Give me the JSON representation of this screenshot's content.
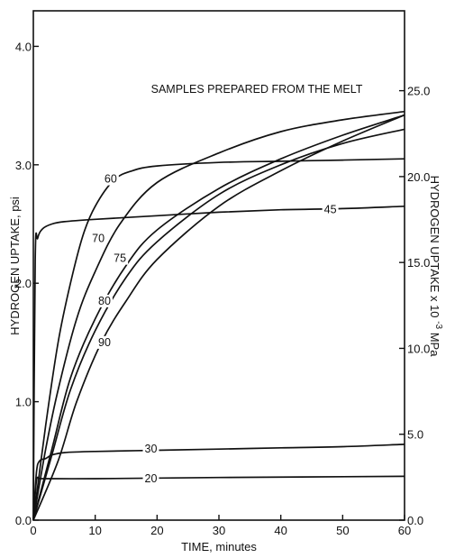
{
  "chart_data": {
    "type": "line",
    "title": "",
    "annotation": "SAMPLES PREPARED FROM THE MELT",
    "xlabel": "TIME, minutes",
    "ylabel": "HYDROGEN UPTAKE, psi",
    "ylabel_right": "HYDROGEN UPTAKE x 10",
    "ylabel_right_exponent": "-3",
    "ylabel_right_unit": "MPa",
    "xlim": [
      0,
      60
    ],
    "ylim": [
      0,
      4.3
    ],
    "ylim_right": [
      0,
      29.65
    ],
    "x_ticks": [
      "0",
      "10",
      "20",
      "30",
      "40",
      "50",
      "60"
    ],
    "y_ticks": [
      "0.0",
      "1.0",
      "2.0",
      "3.0",
      "4.0"
    ],
    "y_ticks_right": [
      "0.0",
      "5.0",
      "10.0",
      "15.0",
      "20.0",
      "25.0"
    ],
    "series": [
      {
        "name": "20",
        "label_at": [
          19,
          0.35
        ],
        "points": [
          [
            0,
            0.0
          ],
          [
            0.5,
            0.33
          ],
          [
            1,
            0.35
          ],
          [
            2,
            0.35
          ],
          [
            10,
            0.35
          ],
          [
            30,
            0.36
          ],
          [
            60,
            0.37
          ]
        ]
      },
      {
        "name": "30",
        "label_at": [
          19,
          0.6
        ],
        "points": [
          [
            0,
            0.0
          ],
          [
            0.5,
            0.4
          ],
          [
            1,
            0.5
          ],
          [
            2,
            0.52
          ],
          [
            3,
            0.55
          ],
          [
            5,
            0.57
          ],
          [
            10,
            0.58
          ],
          [
            20,
            0.59
          ],
          [
            30,
            0.6
          ],
          [
            40,
            0.61
          ],
          [
            50,
            0.62
          ],
          [
            60,
            0.64
          ]
        ]
      },
      {
        "name": "45",
        "label_at": [
          48,
          2.62
        ],
        "points": [
          [
            0,
            0.0
          ],
          [
            0.3,
            2.2
          ],
          [
            0.7,
            2.38
          ],
          [
            1.5,
            2.46
          ],
          [
            3,
            2.5
          ],
          [
            5,
            2.52
          ],
          [
            10,
            2.54
          ],
          [
            20,
            2.57
          ],
          [
            30,
            2.6
          ],
          [
            40,
            2.62
          ],
          [
            50,
            2.63
          ],
          [
            60,
            2.65
          ]
        ]
      },
      {
        "name": "60",
        "label_at": [
          12.5,
          2.88
        ],
        "points": [
          [
            0,
            0.0
          ],
          [
            2,
            0.8
          ],
          [
            4,
            1.5
          ],
          [
            6,
            2.0
          ],
          [
            8,
            2.4
          ],
          [
            10,
            2.65
          ],
          [
            13,
            2.87
          ],
          [
            16,
            2.95
          ],
          [
            20,
            2.99
          ],
          [
            30,
            3.02
          ],
          [
            40,
            3.03
          ],
          [
            50,
            3.04
          ],
          [
            60,
            3.05
          ]
        ]
      },
      {
        "name": "70",
        "label_at": [
          10.5,
          2.38
        ],
        "points": [
          [
            0,
            0.0
          ],
          [
            2,
            0.6
          ],
          [
            4,
            1.1
          ],
          [
            7,
            1.7
          ],
          [
            10,
            2.1
          ],
          [
            14,
            2.5
          ],
          [
            20,
            2.85
          ],
          [
            30,
            3.1
          ],
          [
            40,
            3.28
          ],
          [
            50,
            3.38
          ],
          [
            60,
            3.45
          ]
        ]
      },
      {
        "name": "75",
        "label_at": [
          14,
          2.21
        ],
        "points": [
          [
            0,
            0.0
          ],
          [
            3,
            0.6
          ],
          [
            6,
            1.2
          ],
          [
            10,
            1.7
          ],
          [
            15,
            2.15
          ],
          [
            20,
            2.45
          ],
          [
            30,
            2.8
          ],
          [
            40,
            3.05
          ],
          [
            50,
            3.25
          ],
          [
            60,
            3.42
          ]
        ]
      },
      {
        "name": "80",
        "label_at": [
          11.5,
          1.85
        ],
        "points": [
          [
            0,
            0.0
          ],
          [
            3,
            0.55
          ],
          [
            6,
            1.1
          ],
          [
            10,
            1.6
          ],
          [
            15,
            2.05
          ],
          [
            20,
            2.35
          ],
          [
            30,
            2.75
          ],
          [
            40,
            3.0
          ],
          [
            50,
            3.18
          ],
          [
            60,
            3.3
          ]
        ]
      },
      {
        "name": "90",
        "label_at": [
          11.5,
          1.5
        ],
        "points": [
          [
            0,
            0.0
          ],
          [
            4,
            0.5
          ],
          [
            7,
            1.0
          ],
          [
            11,
            1.5
          ],
          [
            15,
            1.85
          ],
          [
            20,
            2.2
          ],
          [
            30,
            2.65
          ],
          [
            40,
            2.95
          ],
          [
            50,
            3.2
          ],
          [
            60,
            3.42
          ]
        ]
      }
    ]
  }
}
